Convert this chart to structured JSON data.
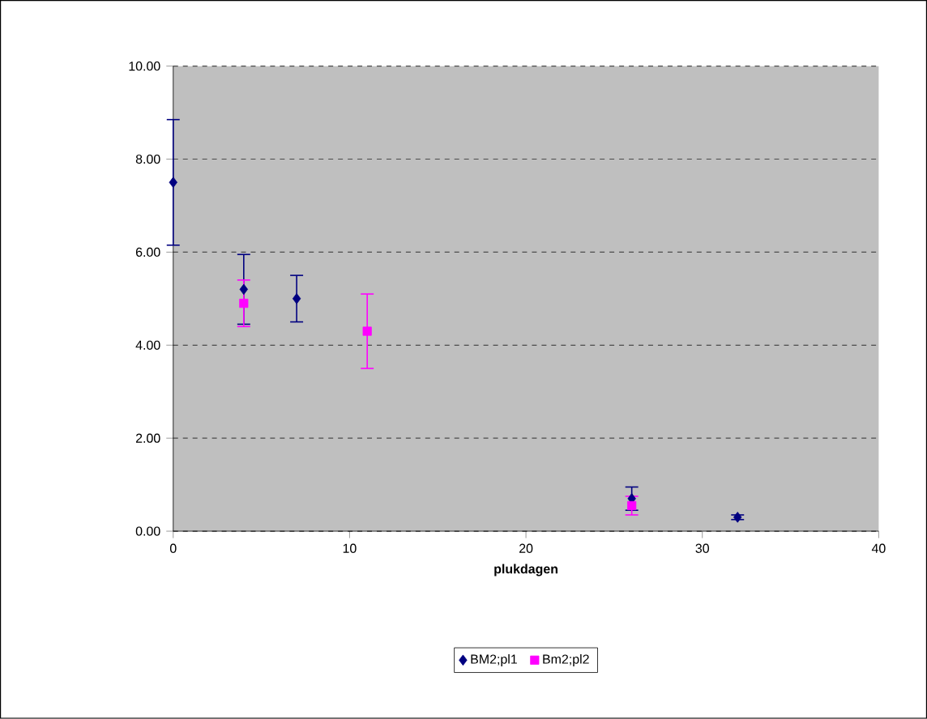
{
  "chart_data": {
    "type": "scatter",
    "xlabel": "plukdagen",
    "xlim": [
      0,
      40
    ],
    "xticks": [
      0,
      10,
      20,
      30,
      40
    ],
    "ylim": [
      0,
      10
    ],
    "yticks": [
      {
        "value": 0,
        "label": "0.00"
      },
      {
        "value": 2,
        "label": "2.00"
      },
      {
        "value": 4,
        "label": "4.00"
      },
      {
        "value": 6,
        "label": "6.00"
      },
      {
        "value": 8,
        "label": "8.00"
      },
      {
        "value": 10,
        "label": "10.00"
      }
    ],
    "grid": "y",
    "legend": "bottom",
    "series": [
      {
        "name": "BM2;pl1",
        "color": "#000080",
        "marker": "diamond",
        "x": [
          0,
          4,
          7,
          26,
          32
        ],
        "values": [
          7.5,
          5.2,
          5.0,
          0.7,
          0.3
        ],
        "errors": [
          1.35,
          0.75,
          0.5,
          0.25,
          0.05
        ]
      },
      {
        "name": "Bm2;pl2",
        "color": "#ff00ff",
        "marker": "square",
        "x": [
          4,
          11,
          26
        ],
        "values": [
          4.9,
          4.3,
          0.55
        ],
        "errors": [
          0.5,
          0.8,
          0.2
        ]
      }
    ]
  }
}
